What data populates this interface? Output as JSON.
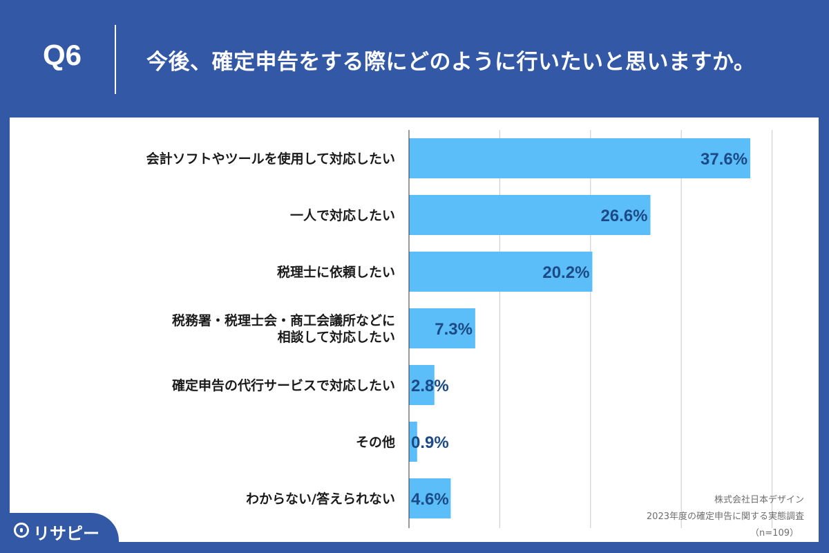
{
  "header": {
    "question_number": "Q6",
    "question_text": "今後、確定申告をする際にどのように行いたいと思いますか。"
  },
  "chart_data": {
    "type": "bar",
    "orientation": "horizontal",
    "categories": [
      [
        "会計ソフトやツールを使用して対応したい"
      ],
      [
        "一人で対応したい"
      ],
      [
        "税理士に依頼したい"
      ],
      [
        "税務署・税理士会・商工会議所などに",
        "相談して対応したい"
      ],
      [
        "確定申告の代行サービスで対応したい"
      ],
      [
        "その他"
      ],
      [
        "わからない/答えられない"
      ]
    ],
    "values": [
      37.6,
      26.6,
      20.2,
      7.3,
      2.8,
      0.9,
      4.6
    ],
    "value_labels": [
      "37.6%",
      "26.6%",
      "20.2%",
      "7.3%",
      "2.8%",
      "0.9%",
      "4.6%"
    ],
    "xlim": [
      0,
      40
    ],
    "grid": true,
    "bar_color": "#5bbef9",
    "title": "",
    "xlabel": "",
    "ylabel": ""
  },
  "source": {
    "company": "株式会社日本デザイン",
    "survey": "2023年度の確定申告に関する実態調査",
    "sample": "（n=109）"
  },
  "logo": {
    "icon": "pin-icon",
    "text": "リサピー"
  },
  "colors": {
    "background": "#3358a5",
    "bar": "#5bbef9",
    "value_text": "#1c4a86"
  }
}
